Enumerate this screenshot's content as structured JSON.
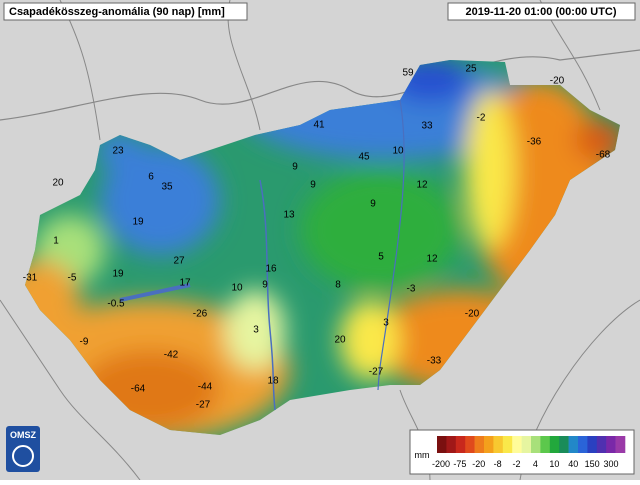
{
  "header": {
    "title": "Csapadékösszeg-anomália (90 nap) [mm]",
    "timestamp": "2019-11-20 01:00 (00:00 UTC)"
  },
  "logo": "OMSZ",
  "stations": [
    59,
    25,
    -20,
    41,
    33,
    -2,
    -36,
    -68,
    23,
    45,
    10,
    20,
    6,
    35,
    9,
    9,
    12,
    9,
    19,
    13,
    1,
    5,
    12,
    27,
    16,
    -31,
    -5,
    19,
    17,
    10,
    9,
    8,
    -3,
    -0.5,
    -26,
    -20,
    -9,
    3,
    3,
    20,
    -42,
    -33,
    -27,
    18,
    -64,
    -44,
    -27
  ],
  "legend": {
    "unit": "mm",
    "labels": [
      -200,
      -75,
      -20,
      -8,
      -2,
      4,
      10,
      40,
      150,
      300
    ],
    "colors": [
      "#7a1010",
      "#a01818",
      "#c8281c",
      "#e04a1c",
      "#ee7c1c",
      "#f4a01c",
      "#f8c830",
      "#fae84a",
      "#fffc9a",
      "#e6f5a0",
      "#a8e07a",
      "#5cc84c",
      "#22a83c",
      "#1a8c5a",
      "#2288c8",
      "#2a64d8",
      "#2a40c0",
      "#5030b0",
      "#7a28a8",
      "#9a3aa8"
    ]
  }
}
